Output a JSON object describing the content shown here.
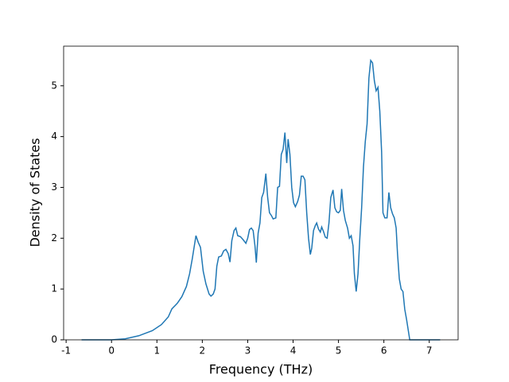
{
  "chart_data": {
    "type": "line",
    "x_label": "Frequency (THz)",
    "y_label": "Density of States",
    "color": "#1f77b4",
    "x": [
      -0.66,
      0,
      0.3,
      0.6,
      0.9,
      1.1,
      1.25,
      1.33,
      1.45,
      1.55,
      1.65,
      1.72,
      1.78,
      1.86,
      1.91,
      1.96,
      2.02,
      2.08,
      2.15,
      2.19,
      2.24,
      2.28,
      2.32,
      2.36,
      2.42,
      2.47,
      2.52,
      2.57,
      2.61,
      2.65,
      2.7,
      2.74,
      2.78,
      2.84,
      2.9,
      2.96,
      3.0,
      3.04,
      3.08,
      3.12,
      3.16,
      3.19,
      3.23,
      3.27,
      3.31,
      3.35,
      3.4,
      3.44,
      3.48,
      3.52,
      3.56,
      3.62,
      3.66,
      3.7,
      3.74,
      3.78,
      3.82,
      3.86,
      3.89,
      3.93,
      3.97,
      4.01,
      4.05,
      4.1,
      4.14,
      4.18,
      4.22,
      4.26,
      4.3,
      4.34,
      4.38,
      4.41,
      4.45,
      4.49,
      4.52,
      4.56,
      4.6,
      4.63,
      4.67,
      4.71,
      4.75,
      4.79,
      4.83,
      4.88,
      4.92,
      4.96,
      5.0,
      5.04,
      5.07,
      5.11,
      5.15,
      5.2,
      5.24,
      5.28,
      5.32,
      5.35,
      5.39,
      5.43,
      5.47,
      5.51,
      5.55,
      5.59,
      5.63,
      5.67,
      5.71,
      5.75,
      5.79,
      5.83,
      5.87,
      5.91,
      5.95,
      5.98,
      6.02,
      6.07,
      6.11,
      6.15,
      6.19,
      6.23,
      6.27,
      6.3,
      6.34,
      6.38,
      6.42,
      6.46,
      6.5,
      6.57,
      6.8,
      7.24
    ],
    "values": [
      0,
      0,
      0.02,
      0.08,
      0.18,
      0.3,
      0.45,
      0.61,
      0.72,
      0.85,
      1.05,
      1.3,
      1.6,
      2.05,
      1.92,
      1.82,
      1.35,
      1.1,
      0.9,
      0.86,
      0.9,
      1.0,
      1.45,
      1.63,
      1.65,
      1.75,
      1.78,
      1.7,
      1.53,
      1.95,
      2.15,
      2.2,
      2.05,
      2.03,
      1.97,
      1.9,
      2.0,
      2.17,
      2.2,
      2.15,
      1.85,
      1.52,
      2.1,
      2.3,
      2.8,
      2.9,
      3.27,
      2.8,
      2.5,
      2.45,
      2.38,
      2.4,
      3.0,
      3.02,
      3.65,
      3.75,
      4.08,
      3.48,
      3.95,
      3.65,
      3.0,
      2.7,
      2.62,
      2.72,
      2.85,
      3.22,
      3.22,
      3.15,
      2.5,
      2.0,
      1.68,
      1.8,
      2.15,
      2.25,
      2.3,
      2.18,
      2.12,
      2.22,
      2.13,
      2.02,
      2.0,
      2.3,
      2.8,
      2.95,
      2.6,
      2.52,
      2.5,
      2.55,
      2.97,
      2.55,
      2.35,
      2.2,
      2.0,
      2.05,
      1.85,
      1.3,
      0.95,
      1.3,
      2.0,
      2.6,
      3.4,
      3.9,
      4.25,
      5.15,
      5.5,
      5.45,
      5.1,
      4.9,
      4.97,
      4.5,
      3.7,
      2.5,
      2.4,
      2.4,
      2.9,
      2.6,
      2.48,
      2.4,
      2.2,
      1.7,
      1.2,
      1.0,
      0.95,
      0.6,
      0.4,
      0,
      0,
      0
    ],
    "xlim": [
      -1.055,
      7.635
    ],
    "xticks": [
      -1,
      0,
      1,
      2,
      3,
      4,
      5,
      6,
      7
    ],
    "ylim": [
      0,
      5.78
    ],
    "yticks": [
      0,
      1,
      2,
      3,
      4,
      5
    ]
  }
}
